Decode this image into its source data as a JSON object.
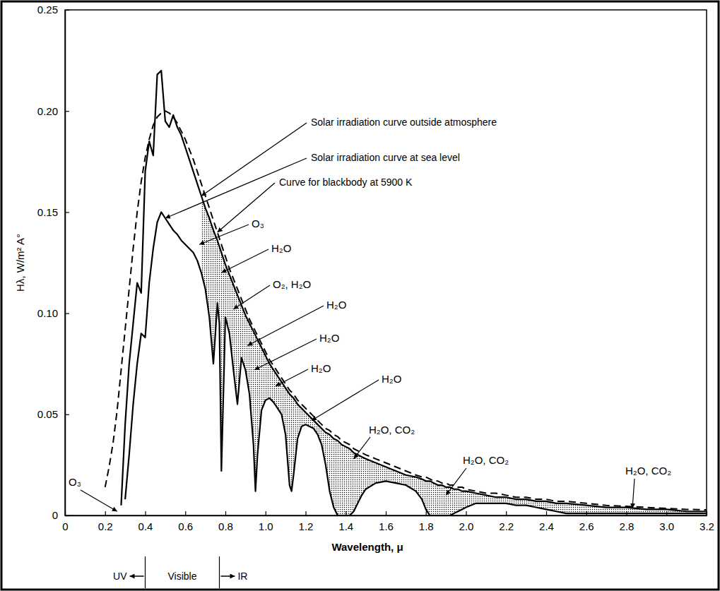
{
  "chart_data": {
    "type": "line",
    "x_label": "Wavelength, μ",
    "y_label": "Hλ, W/m² A°",
    "xlim": [
      0,
      3.2
    ],
    "ylim": [
      0,
      0.25
    ],
    "xticks": [
      0,
      0.2,
      0.4,
      0.6,
      0.8,
      {
        "value": 1,
        "label": "1.0"
      },
      1.2,
      1.4,
      1.6,
      1.8,
      {
        "value": 2,
        "label": "2.0"
      },
      2.2,
      2.4,
      2.6,
      2.8,
      {
        "value": 3,
        "label": "3.0"
      },
      3.2
    ],
    "yticks": [
      0,
      0.05,
      {
        "value": 0.1,
        "label": "0.10"
      },
      0.15,
      {
        "value": 0.2,
        "label": "0.20"
      },
      0.25
    ],
    "grid": false,
    "x": [
      0.2,
      0.22,
      0.24,
      0.26,
      0.28,
      0.3,
      0.32,
      0.34,
      0.36,
      0.38,
      0.4,
      0.42,
      0.44,
      0.46,
      0.48,
      0.5,
      0.52,
      0.54,
      0.56,
      0.58,
      0.6,
      0.62,
      0.64,
      0.66,
      0.68,
      0.7,
      0.72,
      0.74,
      0.76,
      0.77,
      0.78,
      0.8,
      0.82,
      0.84,
      0.86,
      0.88,
      0.9,
      0.92,
      0.94,
      0.95,
      0.96,
      0.98,
      1.0,
      1.02,
      1.04,
      1.06,
      1.08,
      1.1,
      1.12,
      1.13,
      1.14,
      1.16,
      1.18,
      1.2,
      1.22,
      1.24,
      1.26,
      1.28,
      1.3,
      1.32,
      1.34,
      1.36,
      1.38,
      1.4,
      1.42,
      1.44,
      1.46,
      1.48,
      1.5,
      1.55,
      1.6,
      1.65,
      1.7,
      1.75,
      1.78,
      1.8,
      1.82,
      1.84,
      1.86,
      1.88,
      1.9,
      1.92,
      1.94,
      1.96,
      1.98,
      2.0,
      2.05,
      2.1,
      2.15,
      2.2,
      2.25,
      2.3,
      2.35,
      2.4,
      2.45,
      2.5,
      2.6,
      2.7,
      2.8,
      2.9,
      3.0,
      3.1,
      3.2
    ],
    "series": [
      {
        "name": "Solar irradiation curve outside atmosphere",
        "color": "#000000",
        "line_style": "solid",
        "values": [
          null,
          null,
          null,
          null,
          0.005,
          0.045,
          0.075,
          0.095,
          0.115,
          0.11,
          0.17,
          0.185,
          0.178,
          0.218,
          0.22,
          0.195,
          0.192,
          0.198,
          0.192,
          0.188,
          0.182,
          0.176,
          0.17,
          0.164,
          0.158,
          0.152,
          0.147,
          0.141,
          0.136,
          0.133,
          0.13,
          0.124,
          0.119,
          0.114,
          0.109,
          0.104,
          0.099,
          0.095,
          0.091,
          0.089,
          0.087,
          0.083,
          0.079,
          0.075,
          0.072,
          0.069,
          0.066,
          0.063,
          0.06,
          0.059,
          0.058,
          0.055,
          0.053,
          0.051,
          0.049,
          0.047,
          0.045,
          0.043,
          0.041,
          0.04,
          0.038,
          0.037,
          0.035,
          0.034,
          0.033,
          0.031,
          0.03,
          0.029,
          0.028,
          0.026,
          0.024,
          0.022,
          0.02,
          0.019,
          0.018,
          0.017,
          0.017,
          0.016,
          0.015,
          0.015,
          0.014,
          0.014,
          0.013,
          0.013,
          0.012,
          0.012,
          0.011,
          0.01,
          0.009,
          0.009,
          0.008,
          0.008,
          0.007,
          0.007,
          0.006,
          0.006,
          0.005,
          0.004,
          0.004,
          0.003,
          0.003,
          0.002,
          0.002
        ]
      },
      {
        "name": "Solar irradiation curve at sea level",
        "color": "#000000",
        "line_style": "solid",
        "values": [
          null,
          null,
          null,
          null,
          null,
          0.008,
          0.03,
          0.055,
          0.075,
          0.09,
          0.088,
          0.115,
          0.132,
          0.145,
          0.15,
          0.147,
          0.144,
          0.141,
          0.139,
          0.136,
          0.134,
          0.132,
          0.13,
          0.126,
          0.12,
          0.112,
          0.098,
          0.075,
          0.105,
          0.095,
          0.022,
          0.098,
          0.09,
          0.072,
          0.055,
          0.078,
          0.072,
          0.06,
          0.035,
          0.012,
          0.03,
          0.052,
          0.057,
          0.058,
          0.056,
          0.053,
          0.05,
          0.04,
          0.015,
          0.012,
          0.02,
          0.038,
          0.044,
          0.045,
          0.044,
          0.043,
          0.04,
          0.035,
          0.025,
          0.012,
          0.004,
          0,
          0,
          0,
          0,
          0.002,
          0.006,
          0.01,
          0.013,
          0.016,
          0.017,
          0.016,
          0.015,
          0.012,
          0.008,
          0.003,
          0,
          0,
          0,
          0,
          0,
          0,
          0.001,
          0.002,
          0.003,
          0.004,
          0.006,
          0.006,
          0.006,
          0.006,
          0.005,
          0.005,
          0.004,
          0.003,
          0.002,
          0.001,
          0.001,
          0.001,
          0.001,
          0.001,
          0.001,
          0.001,
          0.001
        ]
      },
      {
        "name": "Curve for blackbody at 5900 K",
        "color": "#000000",
        "line_style": "dashed",
        "values": [
          0.014,
          0.024,
          0.036,
          0.052,
          0.072,
          0.092,
          0.112,
          0.132,
          0.15,
          0.165,
          0.177,
          0.186,
          0.193,
          0.197,
          0.199,
          0.2,
          0.199,
          0.197,
          0.194,
          0.19,
          0.186,
          0.181,
          0.176,
          0.17,
          0.164,
          0.158,
          0.152,
          0.146,
          0.14,
          0.137,
          0.134,
          0.128,
          0.122,
          0.117,
          0.112,
          0.107,
          0.102,
          0.097,
          0.093,
          0.091,
          0.089,
          0.085,
          0.081,
          0.077,
          0.074,
          0.071,
          0.068,
          0.065,
          0.062,
          0.061,
          0.06,
          0.057,
          0.055,
          0.053,
          0.051,
          0.049,
          0.047,
          0.045,
          0.043,
          0.042,
          0.04,
          0.039,
          0.037,
          0.036,
          0.035,
          0.033,
          0.032,
          0.031,
          0.03,
          0.028,
          0.026,
          0.024,
          0.022,
          0.02,
          0.019,
          0.019,
          0.018,
          0.017,
          0.017,
          0.016,
          0.016,
          0.015,
          0.015,
          0.014,
          0.014,
          0.013,
          0.012,
          0.011,
          0.011,
          0.01,
          0.009,
          0.009,
          0.008,
          0.008,
          0.007,
          0.007,
          0.006,
          0.005,
          0.0045,
          0.004,
          0.0035,
          0.003,
          0.0028
        ]
      }
    ],
    "annotations": [
      {
        "text": "O₃",
        "x": 0.26,
        "y": 0.002
      },
      {
        "text": "O₃",
        "x": 0.67,
        "y": 0.134
      },
      {
        "text": "H₂O",
        "x": 0.78,
        "y": 0.12
      },
      {
        "text": "O₂, H₂O",
        "x": 0.84,
        "y": 0.102
      },
      {
        "text": "H₂O",
        "x": 0.91,
        "y": 0.084
      },
      {
        "text": "H₂O",
        "x": 0.945,
        "y": 0.072
      },
      {
        "text": "H₂O",
        "x": 1.05,
        "y": 0.064
      },
      {
        "text": "H₂O",
        "x": 1.23,
        "y": 0.047
      },
      {
        "text": "H₂O, CO₂",
        "x": 1.44,
        "y": 0.028
      },
      {
        "text": "H₂O, CO₂",
        "x": 1.9,
        "y": 0.01
      },
      {
        "text": "H₂O, CO₂",
        "x": 2.83,
        "y": 0.0035
      }
    ],
    "regions": {
      "boundaries": [
        0.4,
        0.77
      ],
      "labels": [
        "UV",
        "Visible",
        "IR"
      ]
    }
  }
}
